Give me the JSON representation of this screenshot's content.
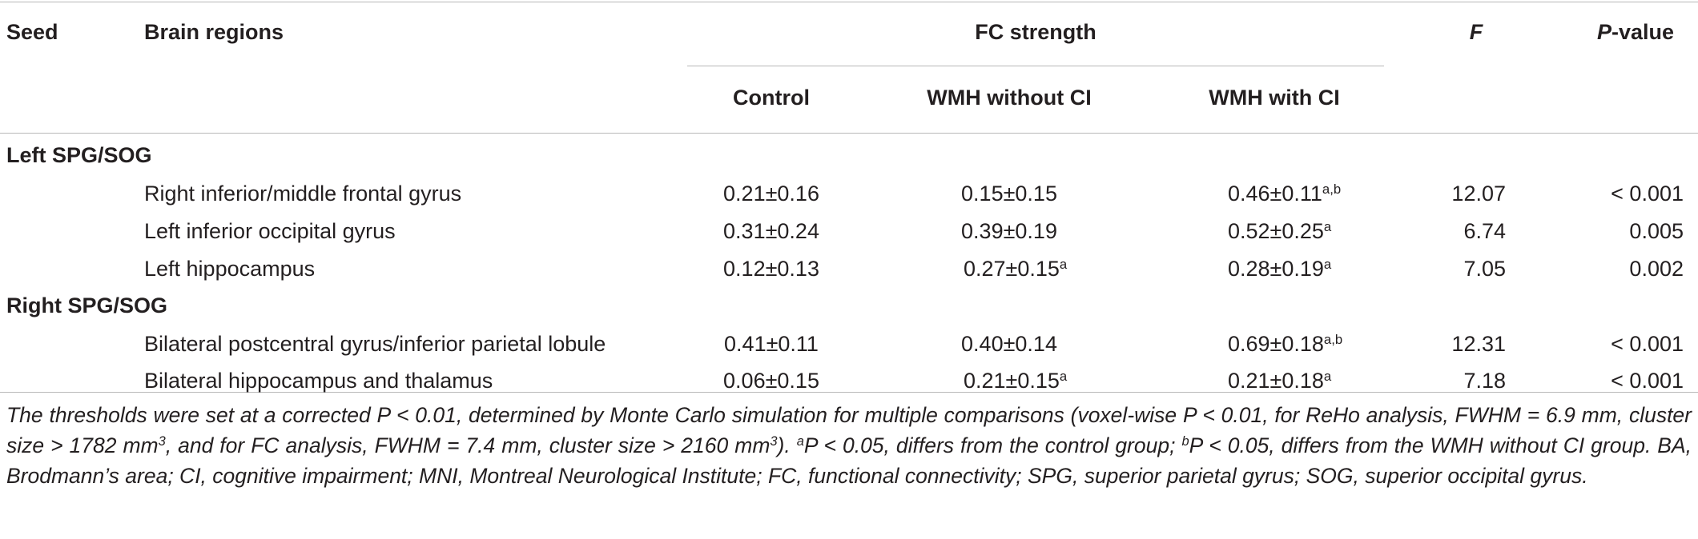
{
  "header": {
    "seed": "Seed",
    "regions": "Brain regions",
    "fc_group": "FC strength",
    "f_col": "F",
    "p_italic": "P",
    "p_rest": "-value",
    "sub_control": "Control",
    "sub_wmh_no_ci": "WMH without CI",
    "sub_wmh_ci": "WMH with CI"
  },
  "groups": [
    {
      "label": "Left SPG/SOG",
      "rows": [
        {
          "region": "Right inferior/middle frontal gyrus",
          "control": "0.21±0.16",
          "control_sup": "",
          "wmh_no_ci": "0.15±0.15",
          "wmh_no_ci_sup": "",
          "wmh_ci": "0.46±0.11",
          "wmh_ci_sup": "a,b",
          "f": "12.07",
          "p": "< 0.001"
        },
        {
          "region": "Left inferior occipital gyrus",
          "control": "0.31±0.24",
          "control_sup": "",
          "wmh_no_ci": "0.39±0.19",
          "wmh_no_ci_sup": "",
          "wmh_ci": "0.52±0.25",
          "wmh_ci_sup": "a",
          "f": "6.74",
          "p": "0.005"
        },
        {
          "region": "Left hippocampus",
          "control": "0.12±0.13",
          "control_sup": "",
          "wmh_no_ci": "0.27±0.15",
          "wmh_no_ci_sup": "a",
          "wmh_ci": "0.28±0.19",
          "wmh_ci_sup": "a",
          "f": "7.05",
          "p": "0.002"
        }
      ]
    },
    {
      "label": "Right SPG/SOG",
      "rows": [
        {
          "region": "Bilateral postcentral gyrus/inferior parietal lobule",
          "control": "0.41±0.11",
          "control_sup": "",
          "wmh_no_ci": "0.40±0.14",
          "wmh_no_ci_sup": "",
          "wmh_ci": "0.69±0.18",
          "wmh_ci_sup": "a,b",
          "f": "12.31",
          "p": "< 0.001"
        },
        {
          "region": "Bilateral hippocampus and thalamus",
          "control": "0.06±0.15",
          "control_sup": "",
          "wmh_no_ci": "0.21±0.15",
          "wmh_no_ci_sup": "a",
          "wmh_ci": "0.21±0.18",
          "wmh_ci_sup": "a",
          "f": "7.18",
          "p": "< 0.001"
        }
      ]
    }
  ],
  "footnote": {
    "t1": "The thresholds were set at a corrected P < 0.01, determined by Monte Carlo simulation for multiple comparisons (voxel-wise P < 0.01, for ReHo analysis, FWHM = 6.9 mm, cluster size > 1782 mm",
    "s1": "3",
    "t2": ", and for FC analysis, FWHM = 7.4 mm, cluster size > 2160 mm",
    "s2": "3",
    "t3": "). ",
    "s3": "a",
    "t4": "P < 0.05, differs from the control group; ",
    "s4": "b",
    "t5": "P < 0.05, differs from the WMH without CI group. BA, Brodmann’s area; CI, cognitive impairment; MNI, Montreal Neurological Institute; FC, functional connectivity; SPG, superior parietal gyrus; SOG, superior occipital gyrus."
  }
}
